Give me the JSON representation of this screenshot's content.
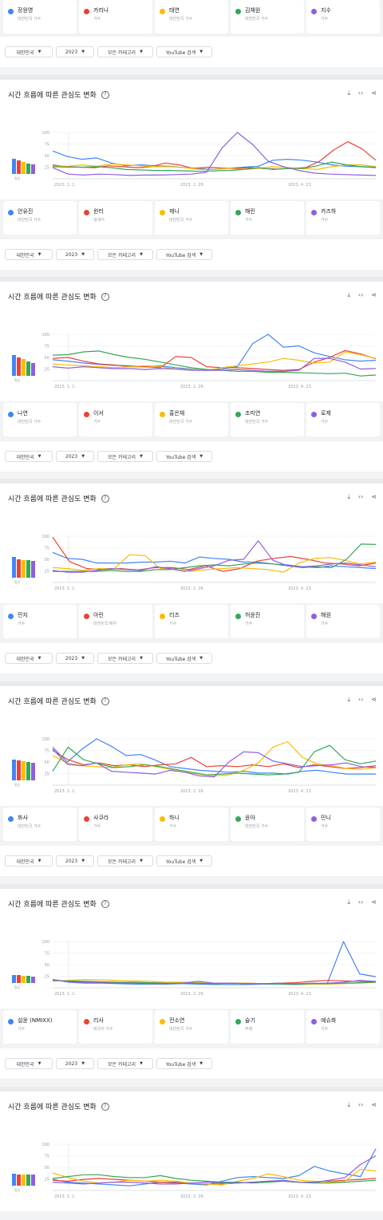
{
  "colors": {
    "blue": "#4285f4",
    "red": "#ea4335",
    "yellow": "#fbbc04",
    "green": "#34a853",
    "purple": "#8e5ee2"
  },
  "filters": [
    "대한민국",
    "2023",
    "모든 카테고리",
    "YouTube 검색"
  ],
  "card_title": "시간 흐름에 따른 관심도 변화",
  "avg_label": "평균",
  "x_ticks": [
    "2023. 1. 1.",
    "2023. 2. 26.",
    "2023. 4. 23."
  ],
  "y_ticks": [
    "100",
    "75",
    "50",
    "25"
  ],
  "chip_rows": [
    [
      {
        "name": "장원영",
        "sub": "대한민국 가수",
        "color": "blue"
      },
      {
        "name": "카리나",
        "sub": "가수",
        "color": "red"
      },
      {
        "name": "태연",
        "sub": "대한민국 가수",
        "color": "yellow"
      },
      {
        "name": "김채원",
        "sub": "대한민국 가수",
        "color": "green"
      },
      {
        "name": "지수",
        "sub": "가수",
        "color": "purple"
      }
    ],
    [
      {
        "name": "안유진",
        "sub": "대한민국 가수",
        "color": "blue"
      },
      {
        "name": "윈터",
        "sub": "검색어",
        "color": "red"
      },
      {
        "name": "제니",
        "sub": "대한민국 가수",
        "color": "yellow"
      },
      {
        "name": "해린",
        "sub": "가수",
        "color": "green"
      },
      {
        "name": "카즈하",
        "sub": "가수",
        "color": "purple"
      }
    ],
    [
      {
        "name": "나연",
        "sub": "대한민국 가수",
        "color": "blue"
      },
      {
        "name": "이서",
        "sub": "가수",
        "color": "red"
      },
      {
        "name": "홍은채",
        "sub": "대한민국 가수",
        "color": "yellow"
      },
      {
        "name": "조미연",
        "sub": "대한민국 가수",
        "color": "green"
      },
      {
        "name": "로제",
        "sub": "가수",
        "color": "purple"
      }
    ],
    [
      {
        "name": "민지",
        "sub": "가수",
        "color": "blue"
      },
      {
        "name": "아린",
        "sub": "대한민국 배우",
        "color": "red"
      },
      {
        "name": "리즈",
        "sub": "가수",
        "color": "yellow"
      },
      {
        "name": "허윤진",
        "sub": "가수",
        "color": "green"
      },
      {
        "name": "해원",
        "sub": "가수",
        "color": "purple"
      }
    ],
    [
      {
        "name": "화사",
        "sub": "대한민국 가수",
        "color": "blue"
      },
      {
        "name": "사쿠라",
        "sub": "가수",
        "color": "red"
      },
      {
        "name": "하니",
        "sub": "가수",
        "color": "yellow"
      },
      {
        "name": "윤아",
        "sub": "대한민국 가수",
        "color": "green"
      },
      {
        "name": "민니",
        "sub": "가수",
        "color": "purple"
      }
    ],
    [
      {
        "name": "설윤 (NMIXX)",
        "sub": "가수",
        "color": "blue"
      },
      {
        "name": "리사",
        "sub": "태국의 가수",
        "color": "red"
      },
      {
        "name": "전소연",
        "sub": "대한민국 가수",
        "color": "yellow"
      },
      {
        "name": "슬기",
        "sub": "주제",
        "color": "green"
      },
      {
        "name": "예슈화",
        "sub": "가수",
        "color": "purple"
      }
    ]
  ],
  "chart_data": [
    {
      "type": "line",
      "x_ticks": [
        "2023. 1. 1.",
        "2023. 2. 26.",
        "2023. 4. 23."
      ],
      "ylim": [
        0,
        100
      ],
      "averages": [
        31,
        29,
        25,
        22,
        20
      ],
      "series": [
        {
          "color": "blue",
          "values": [
            60,
            48,
            42,
            45,
            34,
            28,
            30,
            28,
            27,
            24,
            22,
            20,
            22,
            25,
            27,
            40,
            42,
            40,
            36,
            30,
            27,
            26,
            24
          ]
        },
        {
          "color": "red",
          "values": [
            30,
            26,
            25,
            24,
            28,
            26,
            24,
            26,
            34,
            30,
            22,
            25,
            23,
            22,
            24,
            22,
            21,
            22,
            24,
            38,
            62,
            80,
            65,
            40
          ]
        },
        {
          "color": "yellow",
          "values": [
            28,
            27,
            30,
            27,
            32,
            30,
            28,
            26,
            26,
            24,
            20,
            20,
            22,
            20,
            22,
            26,
            24,
            22,
            20,
            26,
            30,
            30,
            26
          ]
        },
        {
          "color": "green",
          "values": [
            26,
            25,
            25,
            26,
            24,
            20,
            19,
            18,
            18,
            17,
            16,
            17,
            18,
            20,
            24,
            20,
            22,
            22,
            28,
            36,
            30,
            26,
            25
          ]
        },
        {
          "color": "purple",
          "values": [
            24,
            10,
            8,
            10,
            9,
            7,
            8,
            8,
            9,
            10,
            14,
            66,
            100,
            74,
            38,
            26,
            18,
            12,
            10,
            9,
            8,
            7
          ]
        }
      ]
    },
    {
      "type": "line",
      "x_ticks": [
        "2023. 1. 1.",
        "2023. 2. 26.",
        "2023. 4. 23."
      ],
      "ylim": [
        0,
        100
      ],
      "averages": [
        44,
        38,
        35,
        30,
        26
      ],
      "series": [
        {
          "color": "blue",
          "values": [
            45,
            42,
            38,
            35,
            33,
            32,
            30,
            32,
            28,
            25,
            22,
            25,
            30,
            80,
            100,
            72,
            75,
            60,
            52,
            45,
            42,
            44
          ]
        },
        {
          "color": "red",
          "values": [
            48,
            50,
            42,
            36,
            34,
            30,
            30,
            28,
            52,
            50,
            30,
            28,
            28,
            26,
            24,
            22,
            24,
            40,
            50,
            65,
            58,
            47
          ]
        },
        {
          "color": "yellow",
          "values": [
            36,
            34,
            32,
            30,
            28,
            30,
            32,
            30,
            25,
            24,
            22,
            28,
            32,
            36,
            40,
            48,
            44,
            38,
            40,
            62,
            56,
            48
          ]
        },
        {
          "color": "green",
          "values": [
            55,
            56,
            62,
            64,
            56,
            50,
            46,
            40,
            34,
            28,
            24,
            22,
            20,
            20,
            18,
            18,
            17,
            16,
            15,
            16,
            10,
            12
          ]
        },
        {
          "color": "purple",
          "values": [
            30,
            27,
            30,
            28,
            26,
            26,
            24,
            26,
            25,
            22,
            22,
            22,
            24,
            22,
            20,
            20,
            22,
            48,
            48,
            40,
            25,
            26
          ]
        }
      ]
    },
    {
      "type": "line",
      "x_ticks": [
        "2023. 1. 1.",
        "2023. 2. 26.",
        "2023. 4. 23."
      ],
      "ylim": [
        0,
        100
      ],
      "averages": [
        43,
        38,
        37,
        36,
        35
      ],
      "series": [
        {
          "color": "blue",
          "values": [
            65,
            52,
            50,
            42,
            42,
            42,
            44,
            44,
            46,
            42,
            55,
            52,
            50,
            44,
            44,
            40,
            38,
            34,
            32,
            36,
            34,
            32,
            30
          ]
        },
        {
          "color": "red",
          "values": [
            98,
            45,
            30,
            28,
            30,
            27,
            32,
            32,
            28,
            36,
            24,
            30,
            46,
            52,
            56,
            50,
            42,
            40,
            36,
            42
          ]
        },
        {
          "color": "yellow",
          "values": [
            32,
            30,
            26,
            30,
            30,
            60,
            58,
            30,
            28,
            24,
            28,
            30,
            32,
            30,
            28,
            22,
            42,
            52,
            54,
            48,
            40,
            44
          ]
        },
        {
          "color": "green",
          "values": [
            24,
            24,
            24,
            24,
            26,
            24,
            24,
            28,
            28,
            32,
            36,
            38,
            36,
            40,
            42,
            40,
            36,
            32,
            34,
            32,
            50,
            83,
            82
          ]
        },
        {
          "color": "purple",
          "values": [
            26,
            22,
            22,
            26,
            30,
            28,
            26,
            34,
            30,
            24,
            30,
            36,
            48,
            50,
            90,
            48,
            36,
            34,
            36,
            40,
            42,
            38,
            34
          ]
        }
      ]
    },
    {
      "type": "line",
      "x_ticks": [
        "2023. 1. 1.",
        "2023. 2. 26.",
        "2023. 4. 23."
      ],
      "ylim": [
        0,
        100
      ],
      "averages": [
        44,
        42,
        40,
        38,
        36
      ],
      "series": [
        {
          "color": "blue",
          "values": [
            82,
            50,
            78,
            100,
            84,
            64,
            66,
            54,
            40,
            36,
            32,
            30,
            28,
            30,
            26,
            26,
            24,
            30,
            32,
            28,
            24,
            24,
            24
          ]
        },
        {
          "color": "red",
          "values": [
            75,
            55,
            44,
            48,
            42,
            44,
            40,
            44,
            46,
            60,
            40,
            42,
            40,
            44,
            40,
            46,
            38,
            44,
            40,
            36,
            38,
            42
          ]
        },
        {
          "color": "yellow",
          "values": [
            64,
            48,
            42,
            40,
            38,
            44,
            46,
            40,
            34,
            28,
            24,
            20,
            22,
            32,
            48,
            82,
            94,
            60,
            46,
            42,
            36,
            34,
            38
          ]
        },
        {
          "color": "green",
          "values": [
            30,
            82,
            55,
            46,
            38,
            40,
            44,
            40,
            34,
            28,
            22,
            24,
            26,
            24,
            22,
            24,
            28,
            72,
            86,
            55,
            46,
            52
          ]
        },
        {
          "color": "purple",
          "values": [
            78,
            45,
            42,
            48,
            30,
            28,
            26,
            24,
            32,
            28,
            20,
            18,
            50,
            72,
            70,
            52,
            46,
            40,
            42,
            44,
            48,
            40,
            38
          ]
        }
      ]
    },
    {
      "type": "line",
      "x_ticks": [
        "2023. 1. 1.",
        "2023. 2. 26.",
        "2023. 4. 23."
      ],
      "ylim": [
        0,
        100
      ],
      "averages": [
        17,
        16,
        15,
        15,
        14
      ],
      "series": [
        {
          "color": "blue",
          "values": [
            18,
            12,
            10,
            10,
            9,
            8,
            8,
            8,
            9,
            8,
            7,
            7,
            7,
            8,
            8,
            7,
            8,
            10,
            100,
            30,
            24
          ]
        },
        {
          "color": "red",
          "values": [
            16,
            14,
            12,
            12,
            12,
            11,
            11,
            10,
            10,
            10,
            9,
            10,
            10,
            9,
            10,
            11,
            14,
            16,
            15,
            14,
            12
          ]
        },
        {
          "color": "yellow",
          "values": [
            14,
            16,
            18,
            17,
            16,
            15,
            14,
            12,
            12,
            11,
            10,
            10,
            10,
            9,
            9,
            8,
            8,
            8,
            9,
            10,
            12
          ]
        },
        {
          "color": "green",
          "values": [
            16,
            15,
            14,
            13,
            12,
            12,
            11,
            10,
            10,
            10,
            9,
            10,
            9,
            9,
            8,
            8,
            9,
            9,
            10,
            11,
            12
          ]
        },
        {
          "color": "purple",
          "values": [
            18,
            13,
            12,
            11,
            10,
            10,
            9,
            9,
            10,
            14,
            10,
            10,
            9,
            9,
            10,
            9,
            10,
            10,
            12,
            16,
            14
          ]
        }
      ]
    },
    {
      "type": "line",
      "x_ticks": [
        "2023. 1. 1.",
        "2023. 2. 26.",
        "2023. 4. 23."
      ],
      "ylim": [
        0,
        100
      ],
      "averages": [
        25,
        24,
        24,
        23,
        23
      ],
      "series": [
        {
          "color": "blue",
          "values": [
            24,
            18,
            16,
            14,
            12,
            10,
            14,
            18,
            16,
            14,
            12,
            20,
            28,
            30,
            28,
            26,
            32,
            52,
            42,
            36,
            30,
            90
          ]
        },
        {
          "color": "red",
          "values": [
            22,
            20,
            24,
            26,
            24,
            22,
            20,
            18,
            18,
            16,
            14,
            14,
            16,
            18,
            20,
            20,
            18,
            18,
            20,
            22,
            24,
            26
          ]
        },
        {
          "color": "yellow",
          "values": [
            38,
            28,
            20,
            16,
            18,
            22,
            20,
            22,
            20,
            16,
            14,
            12,
            20,
            26,
            36,
            30,
            22,
            20,
            18,
            20,
            46,
            42
          ]
        },
        {
          "color": "green",
          "values": [
            26,
            30,
            34,
            34,
            30,
            28,
            28,
            32,
            26,
            22,
            20,
            18,
            18,
            16,
            18,
            20,
            18,
            16,
            16,
            18,
            20,
            22
          ]
        },
        {
          "color": "purple",
          "values": [
            18,
            16,
            14,
            16,
            18,
            18,
            16,
            14,
            14,
            16,
            18,
            16,
            16,
            18,
            20,
            22,
            18,
            18,
            22,
            28,
            56,
            75
          ]
        }
      ]
    }
  ]
}
